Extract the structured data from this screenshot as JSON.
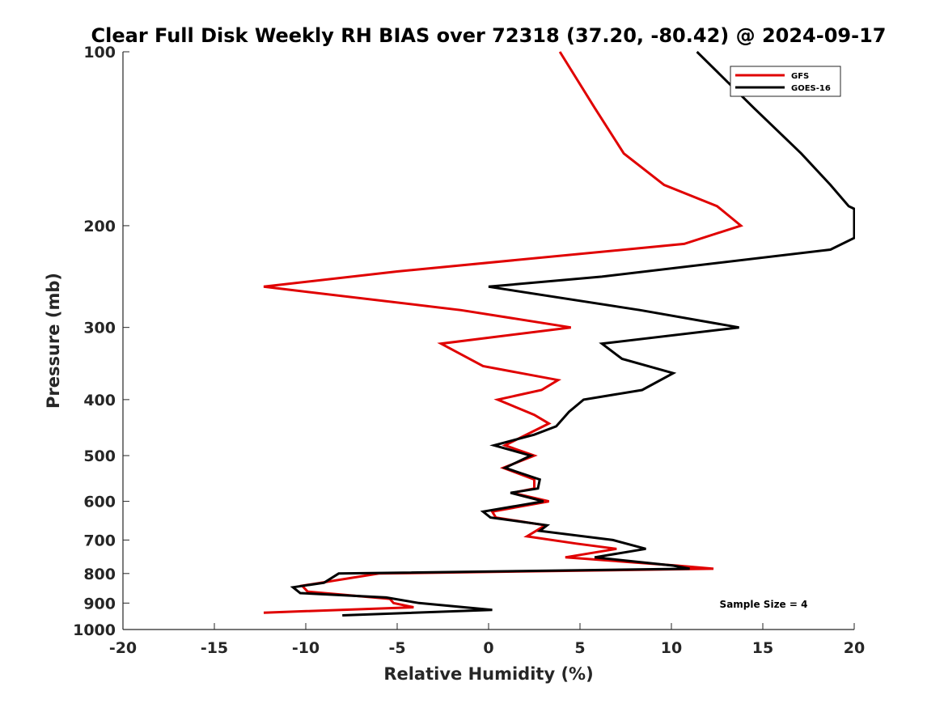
{
  "chart_data": {
    "type": "line",
    "title": "Clear Full Disk Weekly RH BIAS over 72318 (37.20, -80.42) @ 2024-09-17",
    "xlabel": "Relative Humidity (%)",
    "ylabel": "Pressure (mb)",
    "xlim": [
      -20,
      20
    ],
    "ylim": [
      100,
      1000
    ],
    "y_scale": "log",
    "y_reversed": true,
    "x_ticks": [
      -20,
      -15,
      -10,
      -5,
      0,
      5,
      10,
      15,
      20
    ],
    "y_ticks": [
      100,
      200,
      300,
      400,
      500,
      600,
      700,
      800,
      900,
      1000
    ],
    "grid": false,
    "legend_position": "top-right",
    "annotation": "Sample Size = 4",
    "series": [
      {
        "name": "GFS",
        "color": "#e00000",
        "points": [
          {
            "x": 3.9,
            "p": 100
          },
          {
            "x": 5.8,
            "p": 125
          },
          {
            "x": 7.4,
            "p": 150
          },
          {
            "x": 9.6,
            "p": 170
          },
          {
            "x": 12.5,
            "p": 185
          },
          {
            "x": 13.8,
            "p": 200
          },
          {
            "x": 10.7,
            "p": 215
          },
          {
            "x": -5.0,
            "p": 240
          },
          {
            "x": -12.3,
            "p": 255
          },
          {
            "x": -1.5,
            "p": 280
          },
          {
            "x": 4.5,
            "p": 300
          },
          {
            "x": -2.6,
            "p": 320
          },
          {
            "x": -0.3,
            "p": 350
          },
          {
            "x": 3.8,
            "p": 370
          },
          {
            "x": 2.9,
            "p": 385
          },
          {
            "x": 0.5,
            "p": 400
          },
          {
            "x": 2.5,
            "p": 425
          },
          {
            "x": 3.3,
            "p": 440
          },
          {
            "x": 0.9,
            "p": 480
          },
          {
            "x": 2.5,
            "p": 500
          },
          {
            "x": 0.8,
            "p": 525
          },
          {
            "x": 2.5,
            "p": 550
          },
          {
            "x": 2.5,
            "p": 570
          },
          {
            "x": 1.3,
            "p": 580
          },
          {
            "x": 3.3,
            "p": 600
          },
          {
            "x": 0.2,
            "p": 625
          },
          {
            "x": 0.4,
            "p": 640
          },
          {
            "x": 3.1,
            "p": 660
          },
          {
            "x": 2.1,
            "p": 690
          },
          {
            "x": 4.8,
            "p": 710
          },
          {
            "x": 7.0,
            "p": 725
          },
          {
            "x": 4.2,
            "p": 750
          },
          {
            "x": 10.3,
            "p": 775
          },
          {
            "x": 12.3,
            "p": 785
          },
          {
            "x": -6.0,
            "p": 800
          },
          {
            "x": -10.2,
            "p": 840
          },
          {
            "x": -9.9,
            "p": 860
          },
          {
            "x": -5.4,
            "p": 885
          },
          {
            "x": -5.2,
            "p": 900
          },
          {
            "x": -4.1,
            "p": 915
          },
          {
            "x": -12.3,
            "p": 935
          }
        ]
      },
      {
        "name": "GOES-16",
        "color": "#000000",
        "points": [
          {
            "x": 11.4,
            "p": 100
          },
          {
            "x": 14.5,
            "p": 125
          },
          {
            "x": 17.1,
            "p": 150
          },
          {
            "x": 18.7,
            "p": 170
          },
          {
            "x": 19.7,
            "p": 185
          },
          {
            "x": 20.0,
            "p": 187
          },
          {
            "x": 20.0,
            "p": 210
          },
          {
            "x": 18.7,
            "p": 220
          },
          {
            "x": 6.2,
            "p": 245
          },
          {
            "x": 0.0,
            "p": 255
          },
          {
            "x": 8.3,
            "p": 280
          },
          {
            "x": 13.7,
            "p": 300
          },
          {
            "x": 6.2,
            "p": 320
          },
          {
            "x": 7.3,
            "p": 340
          },
          {
            "x": 10.1,
            "p": 360
          },
          {
            "x": 8.4,
            "p": 385
          },
          {
            "x": 5.2,
            "p": 400
          },
          {
            "x": 4.4,
            "p": 420
          },
          {
            "x": 3.7,
            "p": 445
          },
          {
            "x": 2.5,
            "p": 460
          },
          {
            "x": 0.3,
            "p": 480
          },
          {
            "x": 2.3,
            "p": 500
          },
          {
            "x": 0.9,
            "p": 525
          },
          {
            "x": 2.8,
            "p": 550
          },
          {
            "x": 2.7,
            "p": 570
          },
          {
            "x": 1.2,
            "p": 580
          },
          {
            "x": 3.0,
            "p": 600
          },
          {
            "x": -0.3,
            "p": 625
          },
          {
            "x": 0.1,
            "p": 640
          },
          {
            "x": 3.2,
            "p": 660
          },
          {
            "x": 2.8,
            "p": 675
          },
          {
            "x": 6.8,
            "p": 700
          },
          {
            "x": 8.6,
            "p": 725
          },
          {
            "x": 5.8,
            "p": 750
          },
          {
            "x": 10.1,
            "p": 775
          },
          {
            "x": 11.0,
            "p": 785
          },
          {
            "x": -8.2,
            "p": 800
          },
          {
            "x": -9.0,
            "p": 830
          },
          {
            "x": -10.7,
            "p": 845
          },
          {
            "x": -10.3,
            "p": 865
          },
          {
            "x": -5.6,
            "p": 880
          },
          {
            "x": -3.8,
            "p": 900
          },
          {
            "x": 0.2,
            "p": 925
          },
          {
            "x": -8.0,
            "p": 945
          }
        ]
      }
    ]
  }
}
